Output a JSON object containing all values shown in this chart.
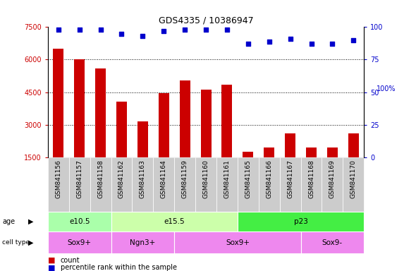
{
  "title": "GDS4335 / 10386947",
  "samples": [
    "GSM841156",
    "GSM841157",
    "GSM841158",
    "GSM841162",
    "GSM841163",
    "GSM841164",
    "GSM841159",
    "GSM841160",
    "GSM841161",
    "GSM841165",
    "GSM841166",
    "GSM841167",
    "GSM841168",
    "GSM841169",
    "GSM841170"
  ],
  "counts": [
    6500,
    6000,
    5600,
    4050,
    3150,
    4450,
    5050,
    4600,
    4850,
    1750,
    1950,
    2600,
    1950,
    1950,
    2600
  ],
  "percentile_ranks": [
    98,
    98,
    98,
    95,
    93,
    97,
    98,
    98,
    98,
    87,
    89,
    91,
    87,
    87,
    90
  ],
  "ylim_left": [
    1500,
    7500
  ],
  "ylim_right": [
    0,
    100
  ],
  "yticks_left": [
    1500,
    3000,
    4500,
    6000,
    7500
  ],
  "yticks_right": [
    0,
    25,
    50,
    75,
    100
  ],
  "bar_color": "#cc0000",
  "dot_color": "#0000cc",
  "age_groups": [
    {
      "label": "e10.5",
      "start": 0,
      "end": 3,
      "color": "#aaffaa"
    },
    {
      "label": "e15.5",
      "start": 3,
      "end": 9,
      "color": "#ccffaa"
    },
    {
      "label": "p23",
      "start": 9,
      "end": 15,
      "color": "#44ee44"
    }
  ],
  "cell_type_groups": [
    {
      "label": "Sox9+",
      "start": 0,
      "end": 3,
      "color": "#ee88ee"
    },
    {
      "label": "Ngn3+",
      "start": 3,
      "end": 6,
      "color": "#ee88ee"
    },
    {
      "label": "Sox9+",
      "start": 6,
      "end": 12,
      "color": "#ee88ee"
    },
    {
      "label": "Sox9-",
      "start": 12,
      "end": 15,
      "color": "#ee88ee"
    }
  ],
  "bar_color_legend": "#cc0000",
  "dot_color_legend": "#0000cc"
}
